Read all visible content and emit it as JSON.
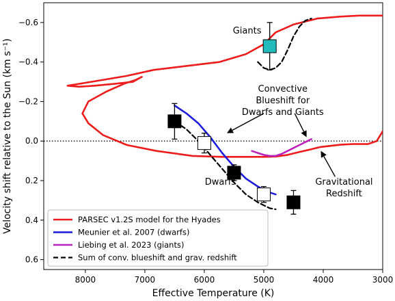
{
  "chart_data": {
    "type": "line",
    "xlabel": "Effective Temperature (K)",
    "ylabel": "Velocity shift relative to the Sun (km s⁻¹)",
    "xlim": [
      8700,
      3000
    ],
    "ylim": [
      0.65,
      -0.7
    ],
    "x_axis_reversed": true,
    "y_axis_inverted": true,
    "xticks": [
      8000,
      7000,
      6000,
      5000,
      4000,
      3000
    ],
    "yticks": [
      -0.6,
      -0.4,
      -0.2,
      0.0,
      0.2,
      0.4,
      0.6
    ],
    "xtick_labels": [
      "8000",
      "7000",
      "6000",
      "5000",
      "4000",
      "3000"
    ],
    "ytick_labels": [
      "−0.6",
      "−0.4",
      "−0.2",
      "0.0",
      "0.2",
      "0.4",
      "0.6"
    ],
    "grid": false,
    "legend_position": "lower-left",
    "zero_line": {
      "y": 0.0,
      "style": "dotted"
    },
    "series": [
      {
        "name": "PARSEC v1.2S model for the Hyades",
        "color": "#ee1c1c",
        "style": "solid",
        "x": [
          3000,
          3100,
          3250,
          3400,
          3500,
          3700,
          3900,
          4050,
          4250,
          4400,
          4600,
          4800,
          5000,
          5300,
          5700,
          6200,
          6800,
          7300,
          7700,
          7950,
          8050,
          7950,
          7650,
          7350,
          7150,
          7050,
          7200,
          7500,
          7850,
          8100,
          8300,
          7900,
          7300,
          6850,
          6300,
          5750,
          5300,
          5000,
          4800,
          4500,
          4100,
          3700,
          3400,
          3200,
          3050,
          3000
        ],
        "y": [
          -0.05,
          0.0,
          0.015,
          0.015,
          0.015,
          0.018,
          0.025,
          0.03,
          0.045,
          0.055,
          0.07,
          0.078,
          0.08,
          0.08,
          0.08,
          0.075,
          0.05,
          0.02,
          -0.03,
          -0.09,
          -0.14,
          -0.2,
          -0.25,
          -0.29,
          -0.31,
          -0.325,
          -0.3,
          -0.29,
          -0.28,
          -0.275,
          -0.28,
          -0.3,
          -0.33,
          -0.36,
          -0.38,
          -0.4,
          -0.44,
          -0.49,
          -0.55,
          -0.59,
          -0.62,
          -0.63,
          -0.635,
          -0.635,
          -0.635,
          -0.635
        ]
      },
      {
        "name": "Meunier et al. 2007 (dwarfs)",
        "color": "#1c1cdd",
        "style": "solid",
        "x": [
          6500,
          6300,
          6100,
          5900,
          5700,
          5500,
          5300,
          5100,
          4900,
          4800
        ],
        "y": [
          -0.18,
          -0.14,
          -0.09,
          -0.02,
          0.06,
          0.13,
          0.19,
          0.23,
          0.26,
          0.27
        ]
      },
      {
        "name": "Liebing et al. 2023 (giants)",
        "color": "#bb22bb",
        "style": "solid",
        "x": [
          5200,
          5100,
          5000,
          4900,
          4800,
          4700,
          4600,
          4500,
          4400,
          4300,
          4200
        ],
        "y": [
          0.05,
          0.06,
          0.07,
          0.075,
          0.075,
          0.065,
          0.05,
          0.035,
          0.02,
          0.005,
          -0.01
        ]
      },
      {
        "name": "Sum of conv. blueshift and grav. redshift",
        "color": "#000000",
        "style": "dashed",
        "x": [
          6500,
          6300,
          6100,
          5900,
          5700,
          5500,
          5300,
          5100,
          4900,
          4800
        ],
        "y": [
          -0.1,
          -0.06,
          0.0,
          0.07,
          0.14,
          0.21,
          0.27,
          0.31,
          0.34,
          0.345
        ]
      },
      {
        "name": "",
        "color": "#000000",
        "style": "dashed",
        "x": [
          5100,
          5000,
          4900,
          4800,
          4700,
          4600,
          4500,
          4400,
          4300,
          4200
        ],
        "y": [
          -0.4,
          -0.37,
          -0.36,
          -0.37,
          -0.4,
          -0.46,
          -0.53,
          -0.58,
          -0.61,
          -0.62
        ]
      }
    ],
    "markers": [
      {
        "x": 6500,
        "y": -0.1,
        "yerr": 0.09,
        "fill": "#000000",
        "group": "Dwarfs"
      },
      {
        "x": 6000,
        "y": 0.01,
        "yerr": 0.05,
        "fill": "#ffffff",
        "group": "Dwarfs"
      },
      {
        "x": 5500,
        "y": 0.16,
        "yerr": 0.04,
        "fill": "#000000",
        "group": "Dwarfs"
      },
      {
        "x": 5000,
        "y": 0.27,
        "yerr": 0.04,
        "fill": "#ffffff",
        "group": "Dwarfs"
      },
      {
        "x": 4500,
        "y": 0.31,
        "yerr": 0.06,
        "fill": "#000000",
        "group": "Dwarfs"
      },
      {
        "x": 4900,
        "y": -0.48,
        "yerr": 0.12,
        "fill": "#22bbbb",
        "group": "Giants"
      }
    ],
    "annotations": [
      {
        "text": [
          "Giants"
        ],
        "x": 5280,
        "y": -0.545,
        "anchor": "middle"
      },
      {
        "text": [
          "Dwarfs"
        ],
        "x": 5730,
        "y": 0.22,
        "anchor": "middle"
      },
      {
        "text": [
          "Convective",
          "Blueshift for",
          "Dwarfs and Giants"
        ],
        "x": 4680,
        "y": -0.25,
        "anchor": "middle"
      },
      {
        "text": [
          "Gravitational",
          "Redshift"
        ],
        "x": 3650,
        "y": 0.22,
        "anchor": "middle"
      }
    ],
    "arrows": [
      {
        "from": [
          5000,
          -0.14
        ],
        "to": [
          5620,
          -0.04
        ]
      },
      {
        "from": [
          4480,
          -0.14
        ],
        "to": [
          4280,
          -0.02
        ]
      },
      {
        "from": [
          3800,
          0.18
        ],
        "to": [
          4040,
          0.05
        ]
      }
    ]
  }
}
